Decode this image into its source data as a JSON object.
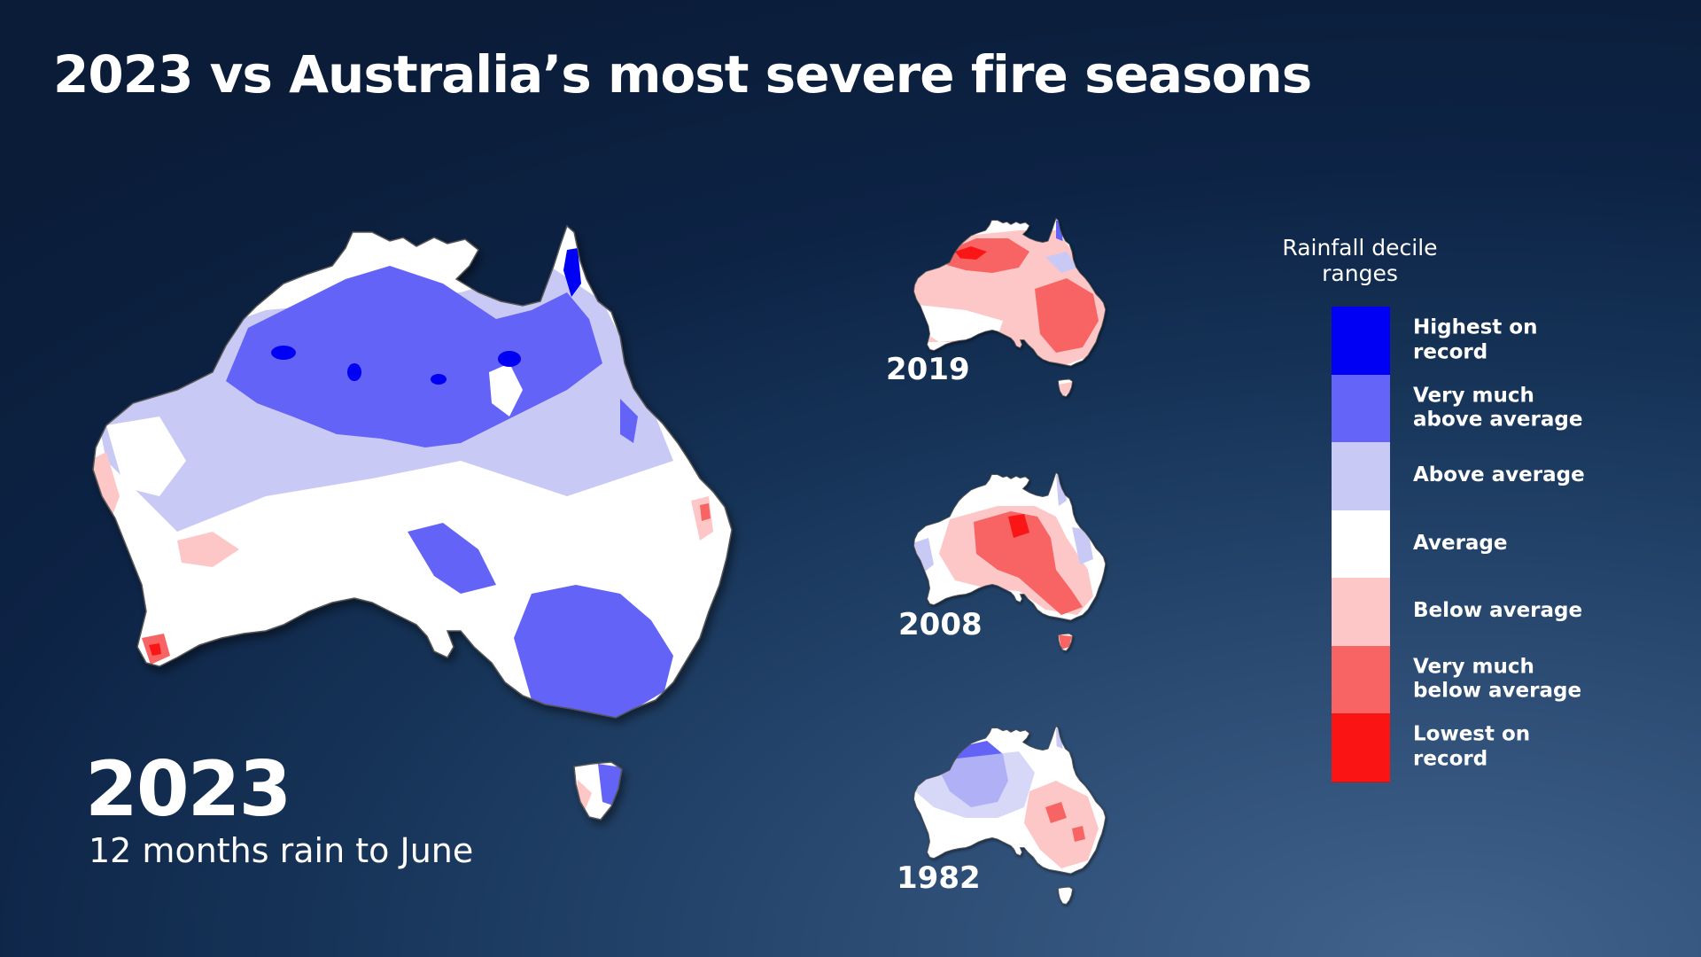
{
  "header": {
    "title": "2023 vs Australia’s most severe fire seasons"
  },
  "main_map": {
    "year": "2023",
    "caption": "12 months rain to June"
  },
  "small_maps": [
    {
      "year": "2019"
    },
    {
      "year": "2008"
    },
    {
      "year": "1982"
    }
  ],
  "legend": {
    "title": "Rainfall decile ranges",
    "items": [
      {
        "label": "Highest on record",
        "color": "#0000f5"
      },
      {
        "label": "Very much above average",
        "color": "#6464f8"
      },
      {
        "label": "Above average",
        "color": "#c9c9f6"
      },
      {
        "label": "Average",
        "color": "#ffffff"
      },
      {
        "label": "Below average",
        "color": "#fdc7c7"
      },
      {
        "label": "Very much below average",
        "color": "#f86464"
      },
      {
        "label": "Lowest on record",
        "color": "#fa1414"
      }
    ]
  },
  "colors": {
    "background": "#0d2345",
    "text": "#ffffff"
  }
}
